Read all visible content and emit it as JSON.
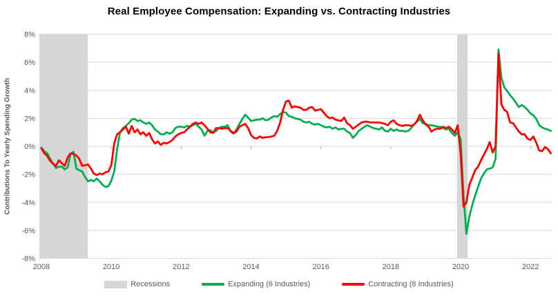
{
  "chart_data": {
    "type": "line",
    "title": "Real Employee Compensation: Expanding vs. Contracting Industries",
    "ylabel": "Contributions To Yearly Spending Growth",
    "xlabel": "",
    "x_start": "2008-01",
    "x_interval": "monthly",
    "x_tick_labels": [
      "2008",
      "2010",
      "2012",
      "2014",
      "2016",
      "2018",
      "2020",
      "2022"
    ],
    "y_tick_labels": [
      "8%",
      "6%",
      "4%",
      "2%",
      "0%",
      "-2%",
      "-4%",
      "-6%",
      "-8%"
    ],
    "xlim": [
      2007.94,
      2022.61
    ],
    "ylim": [
      -8,
      8
    ],
    "grid": "horizontal",
    "legend_position": "bottom",
    "recessions_label": "Recessions",
    "recession_bands": [
      {
        "start": 2007.94,
        "end": 2009.33
      },
      {
        "start": 2019.9,
        "end": 2020.2
      }
    ],
    "colors": {
      "band": "#D6D6D6",
      "grid": "#D9D9D9",
      "tick": "#A6A6A6",
      "axis_text": "#595959",
      "title_text": "#000000"
    },
    "band_color": "#D6D6D6",
    "series": [
      {
        "name": "Expanding (6 Industries)",
        "color": "#00B050",
        "values": [
          -0.1,
          -0.35,
          -0.5,
          -0.9,
          -1.25,
          -1.55,
          -1.45,
          -1.45,
          -1.65,
          -1.5,
          -0.55,
          -0.4,
          -1.6,
          -1.7,
          -1.8,
          -2.2,
          -2.5,
          -2.4,
          -2.5,
          -2.3,
          -2.5,
          -2.75,
          -2.9,
          -2.85,
          -2.45,
          -1.8,
          -0.2,
          1.0,
          1.3,
          1.45,
          1.65,
          1.9,
          1.95,
          1.8,
          1.85,
          1.7,
          1.6,
          1.7,
          1.5,
          1.2,
          1.05,
          0.85,
          0.85,
          1.0,
          0.9,
          1.0,
          1.3,
          1.4,
          1.4,
          1.35,
          1.45,
          1.4,
          1.5,
          1.6,
          1.4,
          1.2,
          0.75,
          1.1,
          1.15,
          1.0,
          1.1,
          1.3,
          1.4,
          1.4,
          1.5,
          1.05,
          0.9,
          1.2,
          1.6,
          1.95,
          2.25,
          2.05,
          1.8,
          1.85,
          1.9,
          1.9,
          2.0,
          1.85,
          1.9,
          2.05,
          2.15,
          2.1,
          2.3,
          2.45,
          2.4,
          2.15,
          2.1,
          2.0,
          1.95,
          1.9,
          1.75,
          1.7,
          1.75,
          1.6,
          1.55,
          1.6,
          1.5,
          1.4,
          1.35,
          1.4,
          1.25,
          1.35,
          1.2,
          1.25,
          1.25,
          1.05,
          0.95,
          0.6,
          0.8,
          1.1,
          1.25,
          1.4,
          1.5,
          1.4,
          1.3,
          1.25,
          1.2,
          1.35,
          1.1,
          1.05,
          1.25,
          1.1,
          1.2,
          1.1,
          1.1,
          1.05,
          1.1,
          1.3,
          1.55,
          1.75,
          1.95,
          1.65,
          1.6,
          1.5,
          1.5,
          1.45,
          1.4,
          1.4,
          1.3,
          1.2,
          1.25,
          0.95,
          0.75,
          1.0,
          0.5,
          -3.5,
          -6.25,
          -5.0,
          -4.2,
          -3.5,
          -2.9,
          -2.3,
          -1.95,
          -1.65,
          -1.6,
          -1.5,
          -0.9,
          6.9,
          4.9,
          4.2,
          3.95,
          3.65,
          3.4,
          3.1,
          2.8,
          2.95,
          2.8,
          2.6,
          2.35,
          2.2,
          1.95,
          1.5,
          1.35,
          1.25,
          1.2,
          1.1
        ]
      },
      {
        "name": "Contracting (8 Industries)",
        "color": "#FF0000",
        "values": [
          -0.15,
          -0.5,
          -0.7,
          -1.05,
          -1.25,
          -1.4,
          -1.0,
          -1.2,
          -1.4,
          -0.8,
          -0.5,
          -0.55,
          -0.65,
          -0.9,
          -1.4,
          -1.35,
          -1.3,
          -1.6,
          -1.95,
          -2.05,
          -1.95,
          -2.0,
          -1.85,
          -1.8,
          -1.35,
          0.2,
          0.85,
          1.0,
          1.2,
          1.4,
          0.9,
          1.45,
          1.0,
          1.2,
          0.85,
          1.0,
          0.75,
          0.95,
          0.5,
          0.2,
          0.35,
          0.1,
          0.25,
          0.2,
          0.3,
          0.45,
          0.7,
          0.85,
          0.95,
          1.0,
          1.2,
          1.4,
          1.6,
          1.7,
          1.6,
          1.7,
          1.5,
          1.25,
          1.0,
          0.95,
          1.3,
          1.3,
          1.25,
          1.3,
          1.3,
          1.1,
          0.95,
          1.05,
          1.4,
          1.5,
          1.6,
          1.3,
          0.8,
          0.6,
          0.55,
          0.7,
          0.6,
          0.65,
          0.65,
          0.7,
          0.75,
          1.1,
          1.7,
          2.6,
          3.2,
          3.25,
          2.75,
          2.85,
          2.8,
          2.75,
          2.6,
          2.6,
          2.75,
          2.8,
          2.55,
          2.6,
          2.65,
          2.4,
          2.15,
          2.0,
          2.05,
          1.9,
          1.85,
          1.8,
          2.05,
          1.65,
          1.5,
          1.25,
          1.4,
          1.55,
          1.7,
          1.75,
          1.75,
          1.7,
          1.7,
          1.7,
          1.7,
          1.65,
          1.6,
          1.5,
          1.75,
          1.85,
          1.6,
          1.5,
          1.45,
          1.5,
          1.5,
          1.45,
          1.55,
          1.8,
          2.25,
          1.85,
          1.55,
          1.4,
          1.05,
          1.2,
          1.25,
          1.25,
          1.4,
          1.3,
          1.4,
          1.2,
          0.95,
          1.5,
          -0.5,
          -4.3,
          -4.0,
          -2.75,
          -2.25,
          -1.7,
          -1.45,
          -1.0,
          -0.6,
          -0.2,
          0.3,
          -0.45,
          0.0,
          6.6,
          3.0,
          2.6,
          2.45,
          1.7,
          1.65,
          1.35,
          1.05,
          0.85,
          0.85,
          0.55,
          0.45,
          0.7,
          0.25,
          -0.3,
          -0.35,
          -0.05,
          -0.2,
          -0.5
        ]
      }
    ]
  }
}
